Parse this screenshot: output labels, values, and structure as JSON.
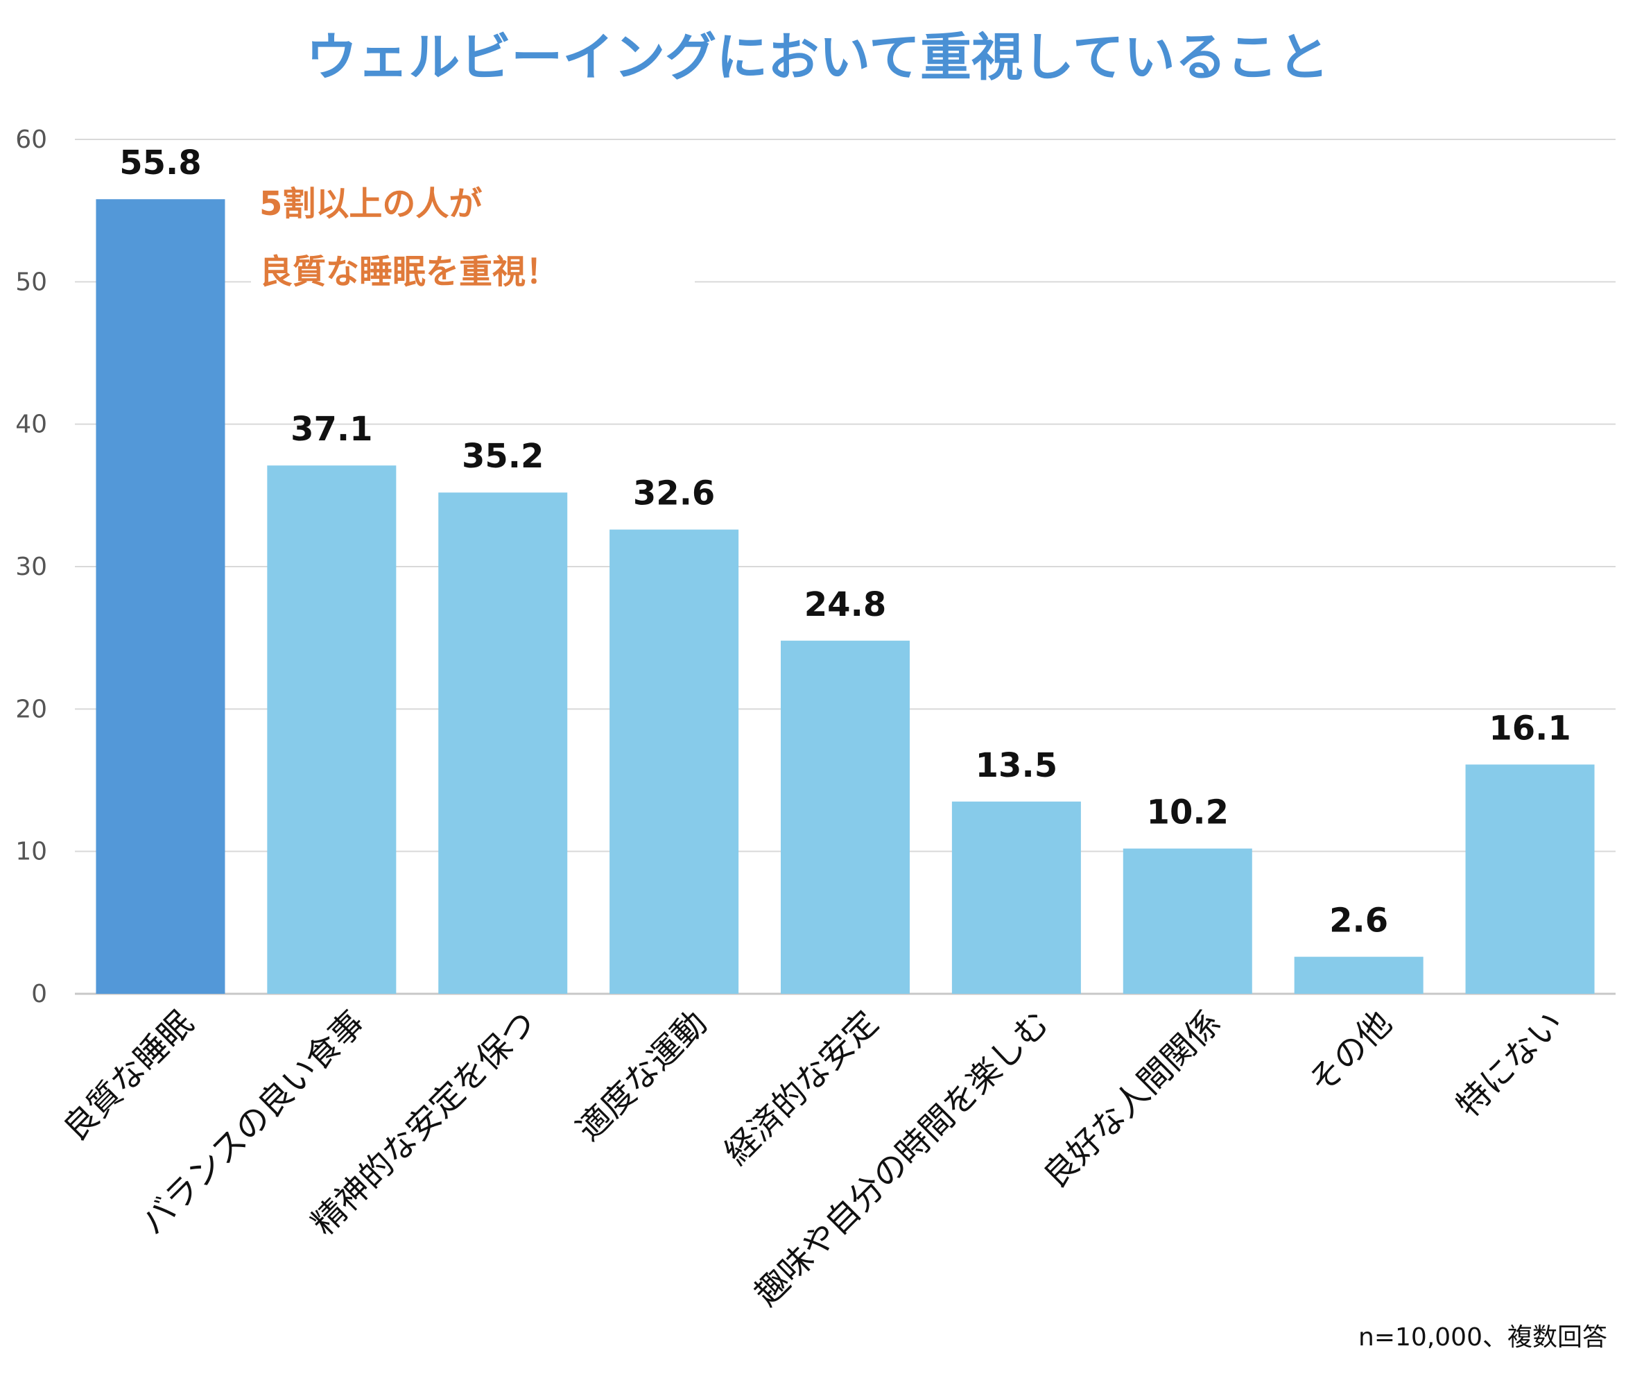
{
  "chart_data": {
    "type": "bar",
    "title": "ウェルビーイングにおいて重視していること",
    "categories": [
      "良質な睡眠",
      "バランスの良い食事",
      "精神的な安定を保つ",
      "適度な運動",
      "経済的な安定",
      "趣味や自分の時間を楽しむ",
      "良好な人間関係",
      "その他",
      "特にない"
    ],
    "values": [
      55.8,
      37.1,
      35.2,
      32.6,
      24.8,
      13.5,
      10.2,
      2.6,
      16.1
    ],
    "value_labels": [
      "55.8",
      "37.1",
      "35.2",
      "32.6",
      "24.8",
      "13.5",
      "10.2",
      "2.6",
      "16.1"
    ],
    "highlight_index": 0,
    "ylim": [
      0,
      60
    ],
    "yticks": [
      0,
      10,
      20,
      30,
      40,
      50,
      60
    ],
    "ytick_labels": [
      "0",
      "10",
      "20",
      "30",
      "40",
      "50",
      "60"
    ],
    "grid": true,
    "xlabel": "",
    "ylabel": "",
    "annotation": {
      "line1": "5割以上の人が",
      "line2": "良質な睡眠を重視！"
    },
    "note": "n=10,000、複数回答"
  },
  "colors": {
    "title": "#4a90d4",
    "highlight_bar": "#5398d8",
    "bar": "#87cbea",
    "annotation": "#e07a3a",
    "grid": "#d9d9d9",
    "axis": "#c8c8c8"
  }
}
